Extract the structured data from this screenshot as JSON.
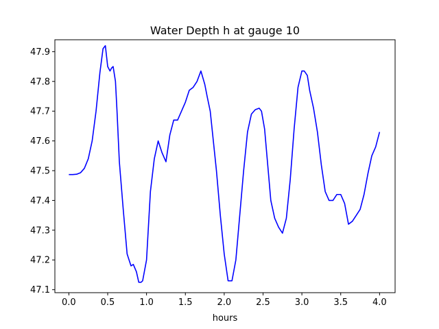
{
  "chart_data": {
    "type": "line",
    "title": "Water Depth h at gauge 10",
    "xlabel": "hours",
    "ylabel": "",
    "xlim": [
      -0.18,
      4.2
    ],
    "ylim": [
      47.09,
      47.94
    ],
    "xticks": [
      0.0,
      0.5,
      1.0,
      1.5,
      2.0,
      2.5,
      3.0,
      3.5,
      4.0
    ],
    "xtick_labels": [
      "0.0",
      "0.5",
      "1.0",
      "1.5",
      "2.0",
      "2.5",
      "3.0",
      "3.5",
      "4.0"
    ],
    "yticks": [
      47.1,
      47.2,
      47.3,
      47.4,
      47.5,
      47.6,
      47.7,
      47.8,
      47.9
    ],
    "ytick_labels": [
      "47.1",
      "47.2",
      "47.3",
      "47.4",
      "47.5",
      "47.6",
      "47.7",
      "47.8",
      "47.9"
    ],
    "grid": false,
    "line_color": "#0000ff",
    "series": [
      {
        "x": [
          0.0,
          0.05,
          0.1,
          0.15,
          0.2,
          0.25,
          0.3,
          0.35,
          0.4,
          0.44,
          0.47,
          0.5,
          0.53,
          0.55,
          0.57,
          0.6,
          0.62,
          0.65,
          0.7,
          0.75,
          0.8,
          0.83,
          0.87,
          0.9,
          0.93,
          0.95,
          1.0,
          1.05,
          1.1,
          1.15,
          1.2,
          1.25,
          1.3,
          1.35,
          1.4,
          1.45,
          1.5,
          1.55,
          1.6,
          1.65,
          1.7,
          1.75,
          1.78,
          1.82,
          1.9,
          1.95,
          2.0,
          2.05,
          2.1,
          2.15,
          2.2,
          2.25,
          2.3,
          2.35,
          2.4,
          2.45,
          2.48,
          2.52,
          2.55,
          2.6,
          2.65,
          2.7,
          2.75,
          2.8,
          2.85,
          2.9,
          2.95,
          3.0,
          3.03,
          3.07,
          3.1,
          3.15,
          3.2,
          3.25,
          3.3,
          3.35,
          3.4,
          3.45,
          3.5,
          3.55,
          3.6,
          3.65,
          3.7,
          3.75,
          3.8,
          3.85,
          3.9,
          3.95,
          4.0
        ],
        "y": [
          47.487,
          47.487,
          47.488,
          47.493,
          47.508,
          47.54,
          47.6,
          47.7,
          47.83,
          47.91,
          47.92,
          47.85,
          47.835,
          47.845,
          47.85,
          47.8,
          47.7,
          47.53,
          47.37,
          47.22,
          47.18,
          47.185,
          47.16,
          47.125,
          47.125,
          47.13,
          47.2,
          47.43,
          47.54,
          47.6,
          47.56,
          47.53,
          47.62,
          47.67,
          47.67,
          47.7,
          47.73,
          47.77,
          47.78,
          47.8,
          47.835,
          47.79,
          47.75,
          47.7,
          47.5,
          47.35,
          47.22,
          47.13,
          47.13,
          47.2,
          47.35,
          47.5,
          47.63,
          47.69,
          47.705,
          47.71,
          47.7,
          47.64,
          47.55,
          47.4,
          47.34,
          47.31,
          47.29,
          47.34,
          47.47,
          47.64,
          47.78,
          47.835,
          47.835,
          47.82,
          47.77,
          47.71,
          47.63,
          47.52,
          47.43,
          47.4,
          47.4,
          47.42,
          47.42,
          47.39,
          47.32,
          47.33,
          47.35,
          47.37,
          47.42,
          47.49,
          47.55,
          47.58,
          47.63
        ]
      }
    ]
  }
}
